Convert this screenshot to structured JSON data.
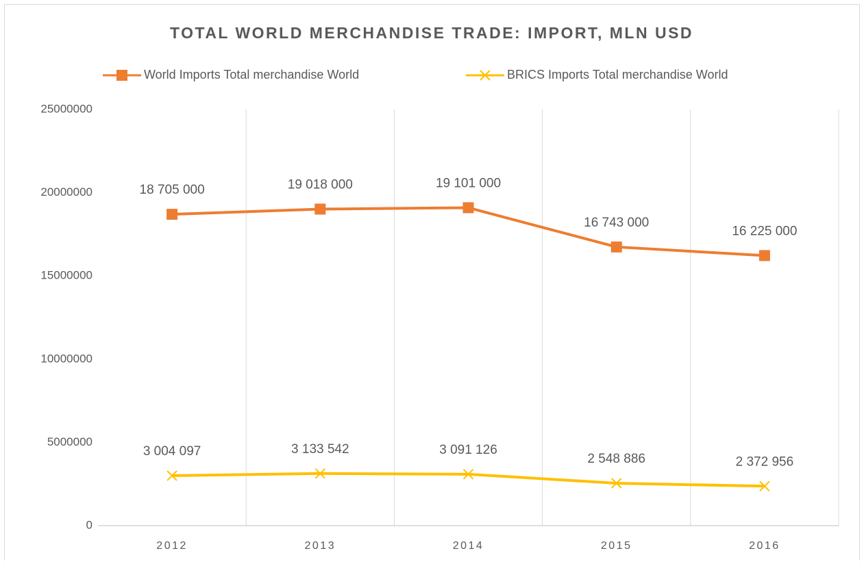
{
  "chart_data": {
    "type": "line",
    "title": "TOTAL WORLD MERCHANDISE TRADE: IMPORT, MLN USD",
    "categories": [
      "2012",
      "2013",
      "2014",
      "2015",
      "2016"
    ],
    "series": [
      {
        "name": "World Imports Total merchandise World",
        "color": "#ed7d31",
        "marker": "square",
        "values": [
          18705000,
          19018000,
          19101000,
          16743000,
          16225000
        ],
        "value_labels": [
          "18 705 000",
          "19 018 000",
          "19 101 000",
          "16 743 000",
          "16 225 000"
        ]
      },
      {
        "name": "BRICS Imports Total merchandise World",
        "color": "#ffc000",
        "marker": "x",
        "values": [
          3004097,
          3133542,
          3091126,
          2548886,
          2372956
        ],
        "value_labels": [
          "3 004 097",
          "3 133 542",
          "3 091 126",
          "2 548 886",
          "2 372 956"
        ]
      }
    ],
    "ylim": [
      0,
      25000000
    ],
    "yticks": [
      0,
      5000000,
      10000000,
      15000000,
      20000000,
      25000000
    ],
    "grid": "x",
    "legend": "top"
  }
}
